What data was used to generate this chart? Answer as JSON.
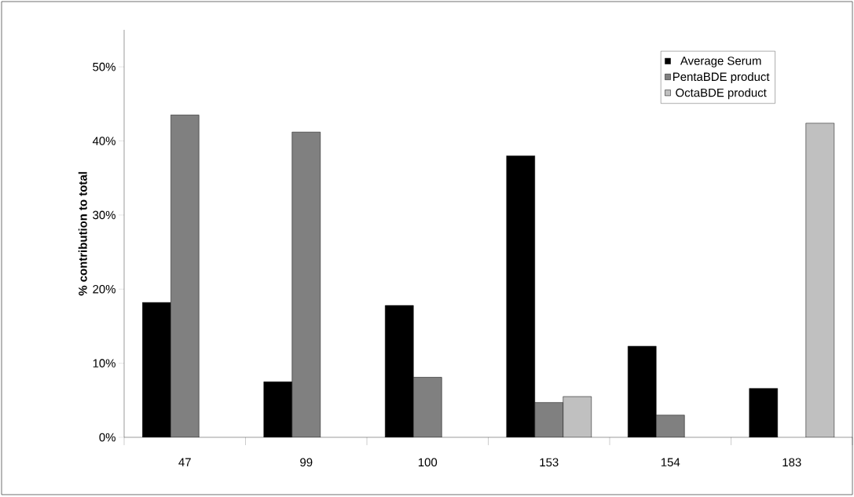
{
  "chart_data": {
    "type": "bar",
    "ylabel": "% contribution to total",
    "categories": [
      "47",
      "99",
      "100",
      "153",
      "154",
      "183"
    ],
    "series": [
      {
        "name": "Average Serum",
        "color": "#000000",
        "values": [
          18.2,
          7.5,
          17.8,
          38.0,
          12.3,
          6.6
        ]
      },
      {
        "name": "PentaBDE product",
        "color": "#808080",
        "values": [
          43.5,
          41.2,
          8.1,
          4.7,
          3.0,
          null
        ]
      },
      {
        "name": "OctaBDE product",
        "color": "#c0c0c0",
        "values": [
          null,
          null,
          null,
          5.5,
          null,
          42.4
        ]
      }
    ],
    "ylim": [
      0,
      55
    ],
    "yticks": [
      {
        "value": 0,
        "label": "0%"
      },
      {
        "value": 10,
        "label": "10%"
      },
      {
        "value": 20,
        "label": "20%"
      },
      {
        "value": 30,
        "label": "30%"
      },
      {
        "value": 40,
        "label": "40%"
      },
      {
        "value": 50,
        "label": "50%"
      }
    ],
    "legend": "top right",
    "grid": false
  }
}
